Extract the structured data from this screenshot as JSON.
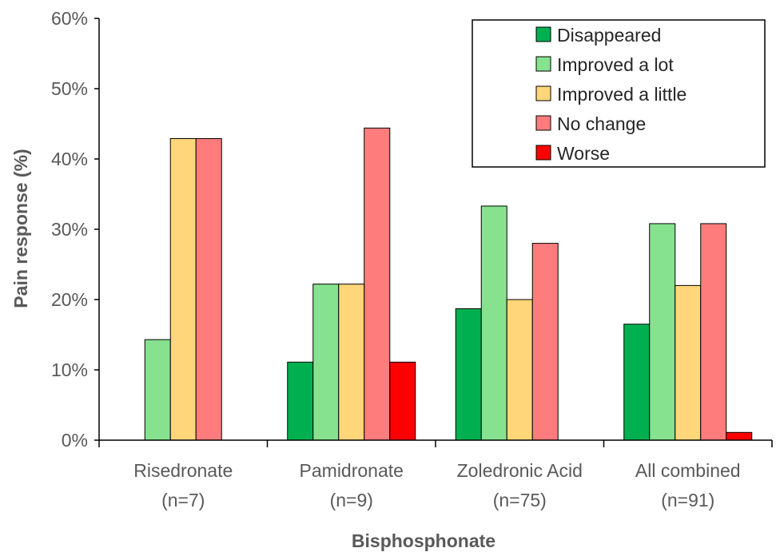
{
  "chart_data": {
    "type": "bar",
    "categories": [
      [
        "Risedronate",
        "(n=7)"
      ],
      [
        "Pamidronate",
        "(n=9)"
      ],
      [
        "Zoledronic Acid",
        "(n=75)"
      ],
      [
        "All combined",
        "(n=91)"
      ]
    ],
    "series": [
      {
        "name": "Disappeared",
        "color": "#00b050",
        "values": [
          0,
          11.1,
          18.7,
          16.5
        ]
      },
      {
        "name": "Improved a lot",
        "color": "#86e28e",
        "values": [
          14.3,
          22.2,
          33.3,
          30.8
        ]
      },
      {
        "name": "Improved a little",
        "color": "#ffd679",
        "values": [
          42.9,
          22.2,
          20.0,
          22.0
        ]
      },
      {
        "name": "No change",
        "color": "#ff7c7c",
        "values": [
          42.9,
          44.4,
          28.0,
          30.8
        ]
      },
      {
        "name": "Worse",
        "color": "#ff0000",
        "values": [
          0,
          11.1,
          0,
          1.1
        ]
      }
    ],
    "ylim": [
      0,
      60
    ],
    "yticks": [
      "0%",
      "10%",
      "20%",
      "30%",
      "40%",
      "50%",
      "60%"
    ],
    "xlabel": "Bisphosphonate",
    "ylabel": "Pain response (%)",
    "legend_position": "top-right",
    "grid": false
  }
}
